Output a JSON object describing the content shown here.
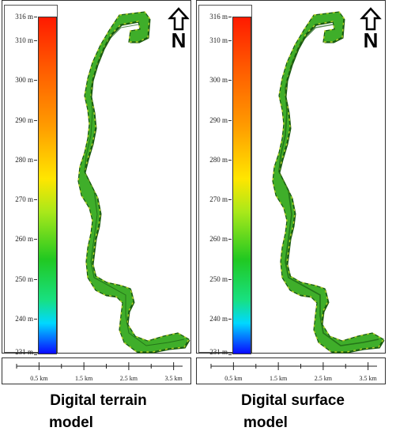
{
  "panels": [
    {
      "id": "dtm",
      "caption_line1": "Digital terrain",
      "caption_line2": "model",
      "north_label": "N"
    },
    {
      "id": "dsm",
      "caption_line1": "Digital surface",
      "caption_line2": "model",
      "north_label": "N"
    }
  ],
  "legend": {
    "ticks": [
      "316 m",
      "310 m",
      "300 m",
      "290 m",
      "280 m",
      "270 m",
      "260 m",
      "250 m",
      "240 m",
      "231 m"
    ],
    "tick_values": [
      316,
      310,
      300,
      290,
      280,
      270,
      260,
      250,
      240,
      231
    ],
    "min": 231,
    "max": 316,
    "colors": [
      "#0a0aff",
      "#00d8ff",
      "#18e080",
      "#21c821",
      "#a8e81a",
      "#ffe600",
      "#ff9a00",
      "#ff5a00",
      "#ff1a00"
    ]
  },
  "scale_bar": {
    "labels": [
      "0.5 km",
      "1.5 km",
      "2.5 km",
      "3.5 km"
    ],
    "label_values_km": [
      0.5,
      1.5,
      2.5,
      3.5
    ]
  },
  "colors": {
    "river_base": "#3fae2a",
    "river_highlight": "#c7d92a",
    "river_shadow": "#1a5c12"
  }
}
